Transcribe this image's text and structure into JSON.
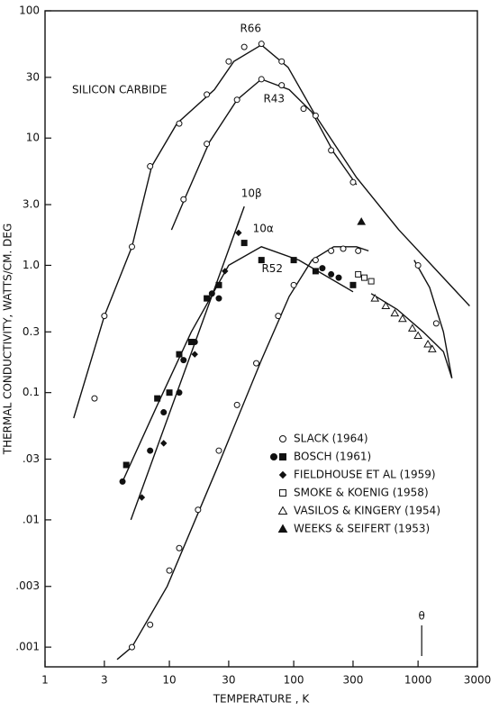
{
  "chart_data": {
    "type": "line",
    "log_x": true,
    "log_y": true,
    "xlabel": "TEMPERATURE , K",
    "ylabel": "THERMAL CONDUCTIVITY, WATTS/CM. DEG",
    "annotation": "SILICON CARBIDE",
    "debye_temperature": {
      "label": "θ",
      "x": 1070
    },
    "color": "#111111",
    "xlim": [
      1,
      3000
    ],
    "ylim": [
      0.0007,
      100
    ],
    "xticks": [
      1,
      3,
      10,
      30,
      100,
      300,
      1000,
      3000
    ],
    "yticks": [
      100,
      30,
      10,
      {
        "value": 3,
        "label": "3.0"
      },
      {
        "value": 1,
        "label": "1.0"
      },
      0.3,
      0.1,
      {
        "value": 0.03,
        "label": ".03"
      },
      {
        "value": 0.01,
        "label": ".01"
      },
      {
        "value": 0.003,
        "label": ".003"
      },
      {
        "value": 0.001,
        "label": ".001"
      }
    ],
    "curves": [
      {
        "name": "R66",
        "x": [
          1.7,
          3,
          5,
          7.2,
          11.5,
          23,
          33,
          55,
          90,
          150,
          320,
          700,
          2600
        ],
        "values": [
          0.063,
          0.4,
          1.4,
          6,
          13,
          24,
          40,
          54,
          36,
          15,
          4.9,
          1.9,
          0.48
        ]
      },
      {
        "name": "R43",
        "x": [
          10.4,
          13.4,
          21,
          35,
          55,
          92,
          140,
          210,
          320
        ],
        "values": [
          1.9,
          3.4,
          9.3,
          20,
          29,
          24,
          16,
          7.7,
          4.3
        ]
      },
      {
        "name": "10β",
        "x": [
          4.9,
          40
        ],
        "values": [
          0.01,
          2.9
        ]
      },
      {
        "name": "10α",
        "x": [
          4.2,
          8,
          15,
          30,
          55,
          110,
          300
        ],
        "values": [
          0.02,
          0.08,
          0.3,
          1.0,
          1.4,
          1.1,
          0.62
        ]
      },
      {
        "name": "R52",
        "x": [
          3.8,
          5,
          9.6,
          24,
          55,
          92,
          140,
          210,
          320,
          400
        ],
        "values": [
          0.0008,
          0.001,
          0.003,
          0.025,
          0.18,
          0.57,
          1.1,
          1.4,
          1.4,
          1.3
        ]
      },
      {
        "x": [
          930,
          1240,
          1600,
          1870
        ],
        "values": [
          1.1,
          0.67,
          0.3,
          0.13
        ]
      },
      {
        "x": [
          420,
          680,
          1100,
          1600,
          1870
        ],
        "values": [
          0.6,
          0.45,
          0.3,
          0.21,
          0.13
        ]
      }
    ],
    "point_sets": [
      {
        "name": "SLACK (1964)",
        "marker": "circle",
        "filled": false,
        "x": [
          2.5,
          3,
          5,
          7,
          12,
          20,
          30,
          40,
          55,
          80,
          150,
          300,
          13,
          20,
          35,
          55,
          80,
          120,
          200,
          5,
          7,
          10,
          12,
          17,
          25,
          35,
          50,
          75,
          100,
          150,
          200,
          250,
          330,
          1000,
          1400
        ],
        "values": [
          0.09,
          0.4,
          1.4,
          6,
          13,
          22,
          40,
          52,
          55,
          40,
          15,
          4.5,
          3.3,
          9,
          20,
          29,
          26,
          17,
          8,
          0.001,
          0.0015,
          0.004,
          0.006,
          0.012,
          0.035,
          0.08,
          0.17,
          0.4,
          0.7,
          1.1,
          1.3,
          1.35,
          1.3,
          1.0,
          0.35
        ]
      },
      {
        "marker": "circle",
        "filled": true,
        "x": [
          4.2,
          7,
          9,
          12,
          13,
          16,
          22,
          25,
          170,
          200,
          230
        ],
        "values": [
          0.02,
          0.035,
          0.07,
          0.1,
          0.18,
          0.25,
          0.6,
          0.55,
          0.95,
          0.85,
          0.8
        ]
      },
      {
        "name": "BOSCH (1961)",
        "marker": "square",
        "filled": true,
        "x": [
          4.5,
          8,
          10,
          12,
          15,
          20,
          25,
          40,
          55,
          100,
          150,
          300
        ],
        "values": [
          0.027,
          0.09,
          0.1,
          0.2,
          0.25,
          0.55,
          0.7,
          1.5,
          1.1,
          1.1,
          0.9,
          0.7
        ]
      },
      {
        "name": "FIELDHOUSE ET AL (1959)",
        "marker": "diamond",
        "filled": true,
        "x": [
          6,
          9,
          16,
          28,
          36
        ],
        "values": [
          0.015,
          0.04,
          0.2,
          0.9,
          1.8
        ]
      },
      {
        "name": "SMOKE & KOENIG (1958)",
        "marker": "square",
        "filled": false,
        "x": [
          330,
          370,
          420
        ],
        "values": [
          0.85,
          0.8,
          0.75
        ]
      },
      {
        "name": "VASILOS & KINGERY (1954)",
        "marker": "triangle",
        "filled": false,
        "x": [
          450,
          550,
          650,
          750,
          900,
          1000,
          1200,
          1300
        ],
        "values": [
          0.55,
          0.48,
          0.42,
          0.38,
          0.32,
          0.28,
          0.24,
          0.22
        ]
      },
      {
        "name": "WEEKS & SEIFERT (1953)",
        "marker": "triangle",
        "filled": true,
        "x": [
          350
        ],
        "values": [
          2.2
        ]
      }
    ]
  }
}
